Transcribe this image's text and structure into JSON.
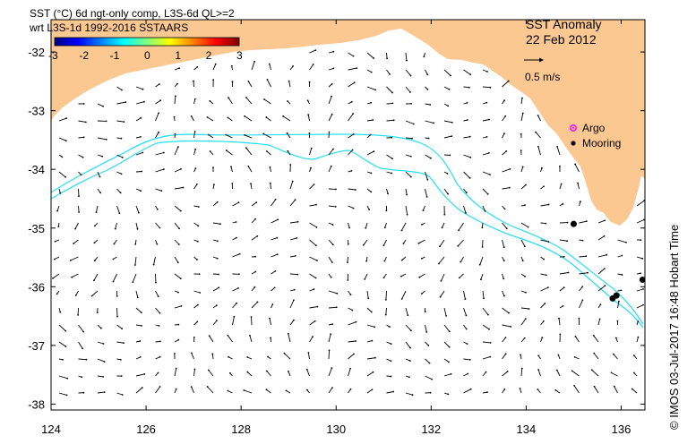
{
  "header": {
    "line1": "SST (°C) 6d ngt-only comp, L3S-6d QL>=2",
    "line2": "wrt L3S-1d 1992-2016 SSTAARS"
  },
  "map_title": {
    "title": "SST Anomaly",
    "date": "22 Feb 2012"
  },
  "colorbar": {
    "ticks": [
      "-3",
      "-2",
      "-1",
      "0",
      "1",
      "2",
      "3"
    ],
    "colors": [
      "#000080",
      "#0000ff",
      "#0080ff",
      "#00ffff",
      "#80ff80",
      "#ffff00",
      "#ff8000",
      "#ff0000",
      "#800000"
    ]
  },
  "scale_vector": {
    "label": "0.5 m/s"
  },
  "legend": {
    "argo_label": "Argo",
    "mooring_label": "Mooring",
    "argo_color": "#ff00ff",
    "mooring_color": "#000000"
  },
  "axes": {
    "lon_ticks": [
      124,
      126,
      128,
      130,
      132,
      134,
      136
    ],
    "lat_ticks": [
      -32,
      -33,
      -34,
      -35,
      -36,
      -37,
      -38
    ],
    "lon_range": [
      124,
      136.5
    ],
    "lat_range": [
      -31.45,
      -38.1
    ]
  },
  "colors": {
    "land": "#fcc892",
    "isobath": "#22e0f0",
    "ocean": "#ffffff"
  },
  "credit": "© IMOS 03-Jul-2017 16:48 Hobart Time",
  "moorings": [
    {
      "lon": 135.0,
      "lat": -34.93
    },
    {
      "lon": 135.82,
      "lat": -36.2
    },
    {
      "lon": 135.9,
      "lat": -36.15
    },
    {
      "lon": 136.45,
      "lat": -35.88
    }
  ]
}
